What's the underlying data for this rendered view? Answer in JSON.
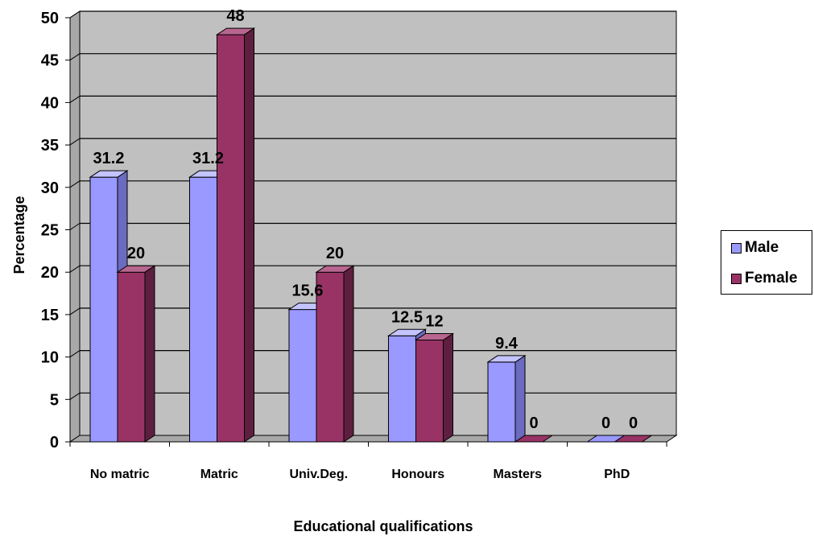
{
  "chart_data": {
    "type": "bar",
    "categories": [
      "No matric",
      "Matric",
      "Univ.Deg.",
      "Honours",
      "Masters",
      "PhD"
    ],
    "series": [
      {
        "name": "Male",
        "values": [
          31.2,
          31.2,
          15.6,
          12.5,
          9.4,
          0
        ],
        "color": "#9999ff",
        "side_color": "#6b6bbf",
        "top_color": "#c4c4ff"
      },
      {
        "name": "Female",
        "values": [
          20,
          48,
          20,
          12,
          0,
          0
        ],
        "color": "#993366",
        "side_color": "#5e1f3f",
        "top_color": "#b8668f"
      }
    ],
    "data_labels": [
      [
        "31.2",
        "31.2",
        "15.6",
        "12.5",
        "9.4",
        "0"
      ],
      [
        "20",
        "48",
        "20",
        "12",
        "0",
        "0"
      ]
    ],
    "xlabel": "Educational qualifications",
    "ylabel": "Percentage",
    "ylim": [
      0,
      50
    ],
    "yticks": [
      "0",
      "5",
      "10",
      "15",
      "20",
      "25",
      "30",
      "35",
      "40",
      "45",
      "50"
    ],
    "grid": true,
    "legend_position": "right",
    "plot_background": "#c0c0c0"
  }
}
